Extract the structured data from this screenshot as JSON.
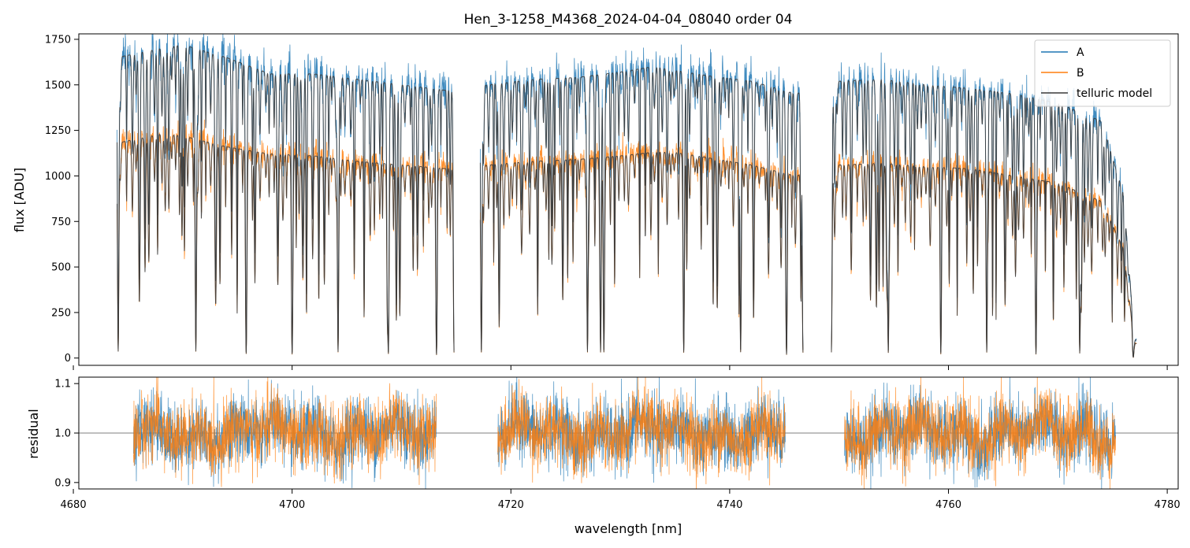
{
  "chart_data": {
    "type": "line",
    "title": "Hen_3-1258_M4368_2024-04-04_08040  order 04",
    "xlabel": "wavelength [nm]",
    "xlim": [
      4680.5,
      4781
    ],
    "x_ticks": [
      4680,
      4700,
      4720,
      4740,
      4760,
      4780
    ],
    "x_tick_labels": [
      "4680",
      "4700",
      "4720",
      "4740",
      "4760",
      "4780"
    ],
    "colors": {
      "A": "#1f77b4",
      "B": "#ff7f0e",
      "telluric": "#3a3a3a"
    },
    "top_panel": {
      "ylabel": "flux [ADU]",
      "ylim": [
        -40,
        1780
      ],
      "y_ticks": [
        0,
        250,
        500,
        750,
        1000,
        1250,
        1500,
        1750
      ],
      "y_tick_labels": [
        "0",
        "250",
        "500",
        "750",
        "1000",
        "1250",
        "1500",
        "1750"
      ],
      "segments": [
        [
          4684.0,
          4714.8
        ],
        [
          4717.2,
          4746.7
        ],
        [
          4749.3,
          4777.2
        ]
      ],
      "continuum_A": [
        [
          4684,
          1650
        ],
        [
          4688,
          1700
        ],
        [
          4690,
          1720
        ],
        [
          4694,
          1650
        ],
        [
          4698,
          1560
        ],
        [
          4702,
          1560
        ],
        [
          4706,
          1530
        ],
        [
          4710,
          1500
        ],
        [
          4714,
          1470
        ],
        [
          4718,
          1500
        ],
        [
          4722,
          1530
        ],
        [
          4726,
          1540
        ],
        [
          4730,
          1570
        ],
        [
          4733,
          1600
        ],
        [
          4735,
          1580
        ],
        [
          4738,
          1550
        ],
        [
          4742,
          1520
        ],
        [
          4746,
          1450
        ],
        [
          4750,
          1520
        ],
        [
          4754,
          1530
        ],
        [
          4758,
          1500
        ],
        [
          4762,
          1480
        ],
        [
          4766,
          1450
        ],
        [
          4770,
          1400
        ],
        [
          4774,
          1300
        ],
        [
          4776,
          900
        ],
        [
          4777,
          100
        ]
      ],
      "continuum_B": [
        [
          4684,
          1180
        ],
        [
          4688,
          1230
        ],
        [
          4690,
          1220
        ],
        [
          4694,
          1160
        ],
        [
          4698,
          1120
        ],
        [
          4702,
          1110
        ],
        [
          4706,
          1080
        ],
        [
          4710,
          1060
        ],
        [
          4714,
          1040
        ],
        [
          4718,
          1060
        ],
        [
          4722,
          1080
        ],
        [
          4726,
          1090
        ],
        [
          4730,
          1110
        ],
        [
          4733,
          1130
        ],
        [
          4735,
          1130
        ],
        [
          4738,
          1100
        ],
        [
          4742,
          1060
        ],
        [
          4746,
          1000
        ],
        [
          4750,
          1060
        ],
        [
          4754,
          1070
        ],
        [
          4758,
          1050
        ],
        [
          4762,
          1040
        ],
        [
          4766,
          1000
        ],
        [
          4770,
          960
        ],
        [
          4774,
          860
        ],
        [
          4776,
          600
        ],
        [
          4777,
          80
        ]
      ],
      "strong_absorption_lines_nm": [
        4684.1,
        4691.2,
        4695.8,
        4700.0,
        4704.2,
        4708.8,
        4713.2,
        4714.8,
        4717.3,
        4727.0,
        4728.2,
        4728.5,
        4735.8,
        4741.0,
        4745.2,
        4746.7,
        4749.3,
        4754.5,
        4759.3,
        4763.5,
        4768.0,
        4772.0,
        4776.9
      ]
    },
    "bottom_panel": {
      "ylabel": "residual",
      "ylim": [
        0.887,
        1.113
      ],
      "y_ticks": [
        0.9,
        1.0,
        1.1
      ],
      "y_tick_labels": [
        "0.9",
        "1.0",
        "1.1"
      ],
      "reference_line": 1.0,
      "segments": [
        [
          4685.5,
          4713.2
        ],
        [
          4718.8,
          4745.1
        ],
        [
          4750.5,
          4775.3
        ]
      ],
      "noise_std": 0.035
    },
    "legend": {
      "position": "top-right",
      "entries": [
        {
          "label": "A",
          "series": "A"
        },
        {
          "label": "B",
          "series": "B"
        },
        {
          "label": "telluric model",
          "series": "telluric"
        }
      ]
    }
  }
}
